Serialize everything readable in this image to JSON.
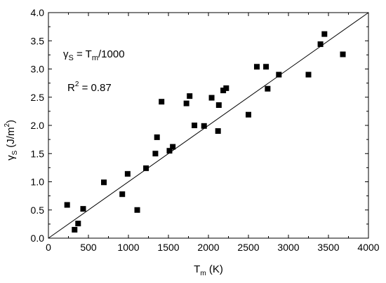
{
  "chart_data": {
    "type": "scatter",
    "title": "",
    "xlabel": {
      "main": "T",
      "sub": "m",
      "rest": " (K)"
    },
    "ylabel": {
      "main": "γ",
      "sub": "S",
      "rest": " (J/m",
      "sup": "2",
      "close": ")"
    },
    "xlim": [
      0,
      4000
    ],
    "ylim": [
      0.0,
      4.0
    ],
    "xticks": [
      0,
      500,
      1000,
      1500,
      2000,
      2500,
      3000,
      3500,
      4000
    ],
    "yticks": [
      0.0,
      0.5,
      1.0,
      1.5,
      2.0,
      2.5,
      3.0,
      3.5,
      4.0
    ],
    "ytick_labels": [
      "0.0",
      "0.5",
      "1.0",
      "1.5",
      "2.0",
      "2.5",
      "3.0",
      "3.5",
      "4.0"
    ],
    "grid": false,
    "fit_line": {
      "x": [
        0,
        4000
      ],
      "y": [
        0.0,
        4.0
      ]
    },
    "annotations": {
      "equation": {
        "lhs_main": "γ",
        "lhs_sub": "S",
        "eq": " = T",
        "rhs_sub": "m",
        "rhs_rest": "/1000"
      },
      "r_squared": {
        "main": "R",
        "sup": "2",
        "rest": " = 0.87"
      }
    },
    "series": [
      {
        "marker": "square",
        "color": "#000000",
        "points": [
          [
            234,
            0.59
          ],
          [
            327,
            0.15
          ],
          [
            371,
            0.26
          ],
          [
            434,
            0.52
          ],
          [
            693,
            0.99
          ],
          [
            923,
            0.78
          ],
          [
            990,
            1.14
          ],
          [
            1110,
            0.5
          ],
          [
            1220,
            1.24
          ],
          [
            1337,
            1.5
          ],
          [
            1357,
            1.79
          ],
          [
            1414,
            2.42
          ],
          [
            1513,
            1.55
          ],
          [
            1554,
            1.62
          ],
          [
            1725,
            2.39
          ],
          [
            1765,
            2.52
          ],
          [
            1825,
            2.0
          ],
          [
            1945,
            1.99
          ],
          [
            2040,
            2.49
          ],
          [
            2120,
            1.9
          ],
          [
            2130,
            2.36
          ],
          [
            2185,
            2.62
          ],
          [
            2222,
            2.66
          ],
          [
            2500,
            2.19
          ],
          [
            2605,
            3.04
          ],
          [
            2720,
            3.04
          ],
          [
            2740,
            2.65
          ],
          [
            2880,
            2.9
          ],
          [
            3250,
            2.9
          ],
          [
            3400,
            3.44
          ],
          [
            3450,
            3.62
          ],
          [
            3680,
            3.26
          ]
        ]
      }
    ]
  }
}
